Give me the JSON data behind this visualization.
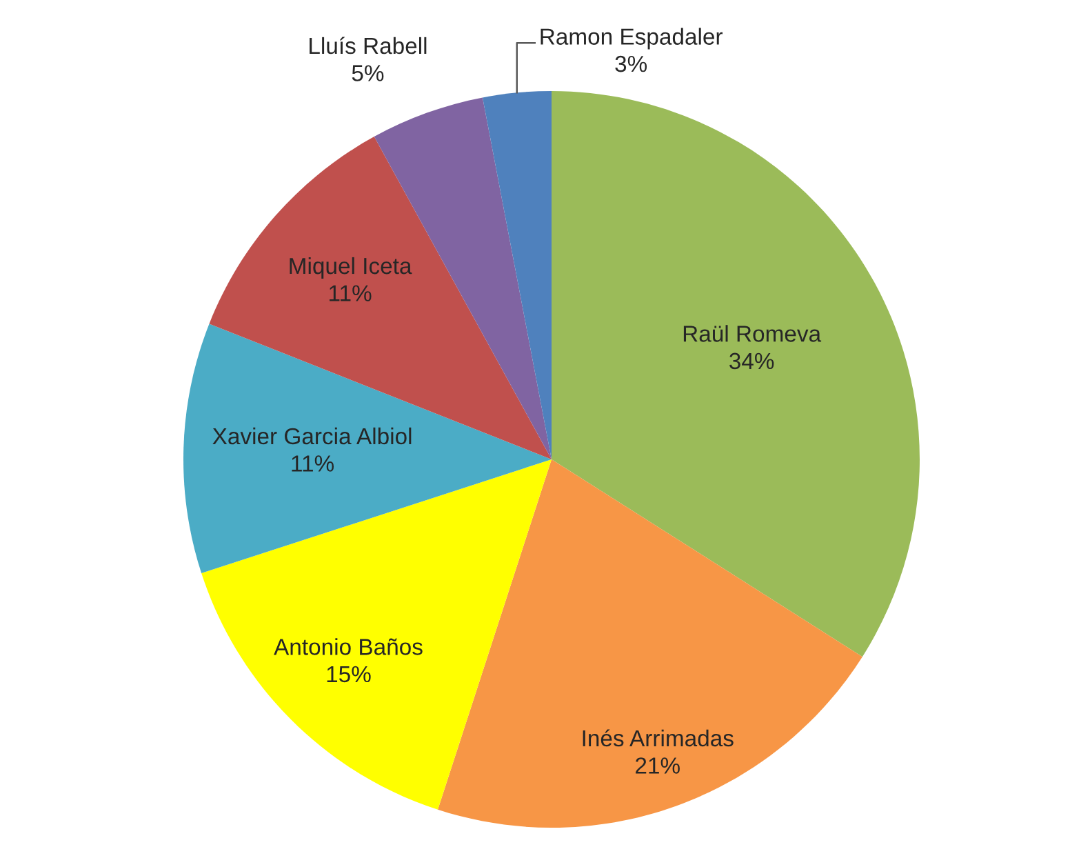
{
  "chart_data": {
    "type": "pie",
    "categories": [
      "Raül Romeva",
      "Inés Arrimadas",
      "Antonio Baños",
      "Xavier Garcia Albiol",
      "Miquel Iceta",
      "Lluís Rabell",
      "Ramon Espadaler"
    ],
    "values": [
      34,
      21,
      15,
      11,
      11,
      5,
      3
    ],
    "value_labels": [
      "34%",
      "21%",
      "15%",
      "11%",
      "11%",
      "5%",
      "3%"
    ],
    "colors": [
      "#9bbb59",
      "#f79646",
      "#ffff00",
      "#4bacc6",
      "#c0504d",
      "#8064a2",
      "#4f81bd"
    ],
    "legend": false
  }
}
